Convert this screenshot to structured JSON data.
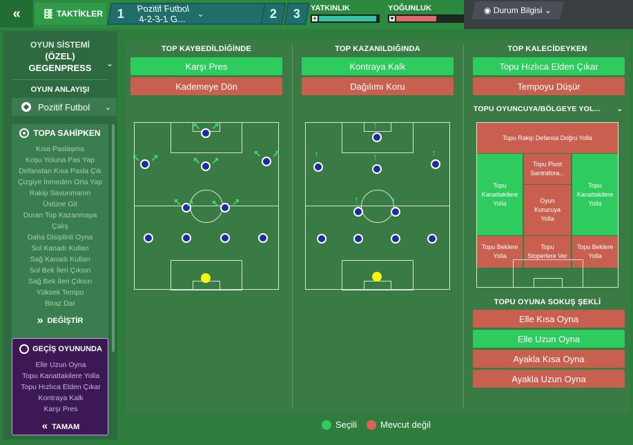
{
  "topbar": {
    "back_label": "«",
    "tactics_label": "TAKTİKLER",
    "slot1": "1",
    "slot_name": "Pozitif Futbol 4-2-3-1 G...",
    "slot2": "2",
    "slot3": "3",
    "meter1_label": "YATKINLIK",
    "meter1_value": 0.95,
    "meter2_label": "YOĞUNLUK",
    "meter2_value": 0.6,
    "status_button": "Durum Bilgisi",
    "colors": {
      "green": "#2b8a3f",
      "teal": "#1f6e6a",
      "meter1": "#37c1a8",
      "meter2": "#e06a6a"
    }
  },
  "sidebar": {
    "system_label": "OYUN SİSTEMİ",
    "system_name_line1": "(ÖZEL)",
    "system_name_line2": "GEGENPRESS",
    "mentality_label": "OYUN ANLAYIŞI",
    "mentality_value": "Pozitif Futbol",
    "in_possession": {
      "title": "TOPA SAHİPKEN",
      "items": [
        "Kısa Paslaşma",
        "Koşu Yoluna Pas Yap",
        "Defanstan Kısa Pasla Çık",
        "Çizgiye İnmeden Orta Yap",
        "Rakip Savunmanın",
        "Üstüne Git",
        "Duran Top Kazanmaya",
        "Çalış",
        "Daha Disiplinli Oyna",
        "Sol Kanadı Kullan",
        "Sağ Kanadı Kullan",
        "Sol Bek İleri Çıksın",
        "Sağ Bek İleri Çıksın",
        "Yüksek Tempo",
        "Biraz Dar"
      ],
      "change_label": "DEĞİŞTİR"
    },
    "transition": {
      "title": "GEÇİŞ OYUNUNDA",
      "items": [
        "Elle Uzun Oyna",
        "Topu Kanattakilere Yolla",
        "Topu Hızlıca Elden Çıkar",
        "Kontraya Kalk",
        "Karşı Pres"
      ],
      "ok_label": "TAMAM"
    }
  },
  "main": {
    "lost": {
      "title": "TOP KAYBEDİLDİĞİNDE",
      "options": [
        {
          "label": "Karşı Pres",
          "state": "selected"
        },
        {
          "label": "Kademeye Dön",
          "state": "unavailable"
        }
      ]
    },
    "won": {
      "title": "TOP KAZANILDIĞINDA",
      "options": [
        {
          "label": "Kontraya Kalk",
          "state": "selected"
        },
        {
          "label": "Dağılımı Koru",
          "state": "unavailable"
        }
      ]
    },
    "gk": {
      "title": "TOP KALECİDEYKEN",
      "options": [
        {
          "label": "Topu Hızlıca Elden Çıkar",
          "state": "selected"
        },
        {
          "label": "Tempoyu Düşür",
          "state": "unavailable"
        }
      ],
      "distribution_title": "TOPU OYUNCUYA/BÖLGEYE YOL...",
      "zones": {
        "top": "Topu Rakip Defansa Doğru Yolla",
        "left_wing": "Topu Kanattakilere Yolla",
        "right_wing": "Topu Kanattakilere Yolla",
        "center_top": "Topu Pivot Santrafora...",
        "center": "Oyun Kurucuya Yolla",
        "bottom_left": "Topu Beklere Yolla",
        "bottom_center": "Topu Stoperlere Ver",
        "bottom_right": "Topu Beklere Yolla"
      },
      "play_title": "TOPU OYUNA SOKUŞ ŞEKLİ",
      "play_options": [
        {
          "label": "Elle Kısa Oyna",
          "state": "unavailable"
        },
        {
          "label": "Elle Uzun Oyna",
          "state": "selected"
        },
        {
          "label": "Ayakla Kısa Oyna",
          "state": "unavailable"
        },
        {
          "label": "Ayakla Uzun Oyna",
          "state": "unavailable"
        }
      ]
    }
  },
  "legend": {
    "selected_label": "Seçili",
    "unavailable_label": "Mevcut değil",
    "selected_color": "#2ecc5e",
    "unavailable_color": "#e0605a"
  }
}
